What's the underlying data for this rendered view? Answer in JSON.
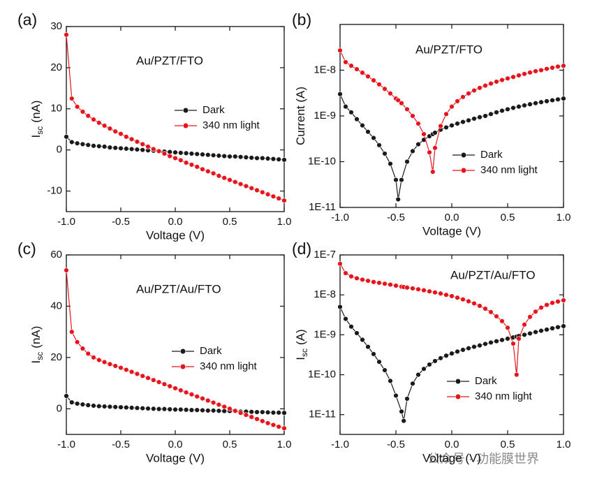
{
  "chart_data": [
    {
      "type": "line",
      "panel": "(a)",
      "annotation": "Au/PZT/FTO",
      "xlabel": "Voltage (V)",
      "ylabel": [
        "I",
        "sc",
        "(nA)"
      ],
      "xlim": [
        -1,
        1
      ],
      "xticks": [
        {
          "value": -1,
          "label": "-1.0"
        },
        {
          "value": -0.5,
          "label": "-0.5"
        },
        {
          "value": 0,
          "label": "0.0"
        },
        {
          "value": 0.5,
          "label": "0.5"
        },
        {
          "value": 1,
          "label": "1.0"
        }
      ],
      "ylim": [
        -15,
        30
      ],
      "yticks": [
        -10,
        0,
        10,
        20,
        30
      ],
      "grid": false,
      "x": [
        -1,
        -0.95,
        -0.9,
        -0.85,
        -0.8,
        -0.75,
        -0.7,
        -0.65,
        -0.6,
        -0.55,
        -0.5,
        -0.45,
        -0.4,
        -0.35,
        -0.3,
        -0.25,
        -0.2,
        -0.15,
        -0.1,
        -0.05,
        0,
        0.05,
        0.1,
        0.15,
        0.2,
        0.25,
        0.3,
        0.35,
        0.4,
        0.45,
        0.5,
        0.55,
        0.6,
        0.65,
        0.7,
        0.75,
        0.8,
        0.85,
        0.9,
        0.95,
        1
      ],
      "series": [
        {
          "name": "Dark",
          "color": "#1a1a1a",
          "values": [
            3.2,
            1.9,
            1.6,
            1.4,
            1.2,
            1.0,
            0.9,
            0.8,
            0.6,
            0.5,
            0.4,
            0.3,
            0.2,
            0.1,
            0.0,
            -0.1,
            -0.2,
            -0.3,
            -0.4,
            -0.5,
            -0.6,
            -0.7,
            -0.8,
            -0.9,
            -1.0,
            -1.1,
            -1.2,
            -1.3,
            -1.4,
            -1.5,
            -1.6,
            -1.6,
            -1.7,
            -1.8,
            -1.9,
            -2.0,
            -2.0,
            -2.1,
            -2.2,
            -2.3,
            -2.4
          ]
        },
        {
          "name": "340 nm light",
          "color": "#e8141c",
          "values": [
            28,
            12.5,
            10.5,
            9.3,
            8.3,
            7.4,
            6.6,
            5.9,
            5.2,
            4.5,
            3.9,
            3.2,
            2.6,
            2.0,
            1.4,
            0.8,
            0.2,
            -0.3,
            -0.9,
            -1.5,
            -2.0,
            -2.5,
            -3.1,
            -3.6,
            -4.1,
            -4.7,
            -5.2,
            -5.7,
            -6.3,
            -6.8,
            -7.3,
            -7.8,
            -8.3,
            -8.8,
            -9.3,
            -9.8,
            -10.3,
            -10.8,
            -11.3,
            -11.8,
            -12.3
          ]
        }
      ]
    },
    {
      "type": "line",
      "panel": "(b)",
      "annotation": "Au/PZT/FTO",
      "xlabel": "Voltage (V)",
      "ylabel": [
        "Current (A)"
      ],
      "yscale": "log",
      "xlim": [
        -1,
        1
      ],
      "xticks": [
        {
          "value": -1,
          "label": "-1.0"
        },
        {
          "value": -0.5,
          "label": "-0.5"
        },
        {
          "value": 0,
          "label": "0.0"
        },
        {
          "value": 0.5,
          "label": "0.5"
        },
        {
          "value": 1,
          "label": "1.0"
        }
      ],
      "ylim": [
        1e-11,
        1e-07
      ],
      "yticks": [
        {
          "value": 1e-11,
          "label": "1E-11"
        },
        {
          "value": 1e-10,
          "label": "1E-10"
        },
        {
          "value": 1e-09,
          "label": "1E-9"
        },
        {
          "value": 1e-08,
          "label": "1E-8"
        }
      ],
      "grid": false,
      "x": [
        -1,
        -0.95,
        -0.9,
        -0.85,
        -0.8,
        -0.75,
        -0.7,
        -0.65,
        -0.6,
        -0.55,
        -0.5,
        -0.48,
        -0.45,
        -0.4,
        -0.35,
        -0.3,
        -0.25,
        -0.2,
        -0.17,
        -0.15,
        -0.1,
        -0.05,
        0,
        0.05,
        0.1,
        0.15,
        0.2,
        0.25,
        0.3,
        0.35,
        0.4,
        0.45,
        0.5,
        0.55,
        0.6,
        0.65,
        0.7,
        0.75,
        0.8,
        0.85,
        0.9,
        0.95,
        1
      ],
      "series": [
        {
          "name": "Dark",
          "color": "#1a1a1a",
          "values": [
            3e-09,
            1.6e-09,
            1.2e-09,
            8.5e-10,
            6.2e-10,
            4.5e-10,
            3.3e-10,
            2.3e-10,
            1.5e-10,
            9e-11,
            4e-11,
            1.5e-11,
            4e-11,
            1e-10,
            1.7e-10,
            2.4e-10,
            3e-10,
            3.6e-10,
            4e-10,
            4.3e-10,
            5e-10,
            5.6e-10,
            6.2e-10,
            6.8e-10,
            7.4e-10,
            8e-10,
            8.7e-10,
            9.4e-10,
            1e-09,
            1.1e-09,
            1.2e-09,
            1.3e-09,
            1.4e-09,
            1.5e-09,
            1.6e-09,
            1.7e-09,
            1.8e-09,
            1.9e-09,
            2e-09,
            2.1e-09,
            2.2e-09,
            2.3e-09,
            2.4e-09
          ]
        },
        {
          "name": "340 nm light",
          "color": "#e8141c",
          "values": [
            2.7e-08,
            1.5e-08,
            1.25e-08,
            1.05e-08,
            8.8e-09,
            7.3e-09,
            6e-09,
            4.9e-09,
            3.9e-09,
            3.1e-09,
            2.4e-09,
            2.2e-09,
            1.9e-09,
            1.4e-09,
            1e-09,
            6.8e-10,
            4e-10,
            1.6e-10,
            6e-11,
            2e-10,
            6e-10,
            1.1e-09,
            1.6e-09,
            2.1e-09,
            2.6e-09,
            3.1e-09,
            3.6e-09,
            4.1e-09,
            4.6e-09,
            5.1e-09,
            5.6e-09,
            6.1e-09,
            6.6e-09,
            7.1e-09,
            7.7e-09,
            8.3e-09,
            8.9e-09,
            9.5e-09,
            1e-08,
            1.07e-08,
            1.13e-08,
            1.2e-08,
            1.25e-08
          ]
        }
      ]
    },
    {
      "type": "line",
      "panel": "(c)",
      "annotation": "Au/PZT/Au/FTO",
      "xlabel": "Voltage (V)",
      "ylabel": [
        "I",
        "sc",
        "(nA)"
      ],
      "xlim": [
        -1,
        1
      ],
      "xticks": [
        {
          "value": -1,
          "label": "-1.0"
        },
        {
          "value": -0.5,
          "label": "-0.5"
        },
        {
          "value": 0,
          "label": "0.0"
        },
        {
          "value": 0.5,
          "label": "0.5"
        },
        {
          "value": 1,
          "label": "1.0"
        }
      ],
      "ylim": [
        -10,
        60
      ],
      "yticks": [
        0,
        20,
        40,
        60
      ],
      "grid": false,
      "x": [
        -1,
        -0.95,
        -0.9,
        -0.85,
        -0.8,
        -0.75,
        -0.7,
        -0.65,
        -0.6,
        -0.55,
        -0.5,
        -0.45,
        -0.4,
        -0.35,
        -0.3,
        -0.25,
        -0.2,
        -0.15,
        -0.1,
        -0.05,
        0,
        0.05,
        0.1,
        0.15,
        0.2,
        0.25,
        0.3,
        0.35,
        0.4,
        0.45,
        0.5,
        0.55,
        0.6,
        0.65,
        0.7,
        0.75,
        0.8,
        0.85,
        0.9,
        0.95,
        1
      ],
      "series": [
        {
          "name": "Dark",
          "color": "#1a1a1a",
          "values": [
            5,
            2.5,
            2,
            1.7,
            1.4,
            1.2,
            1.0,
            0.9,
            0.8,
            0.7,
            0.6,
            0.5,
            0.4,
            0.3,
            0.2,
            0.1,
            0.0,
            -0.1,
            -0.1,
            -0.2,
            -0.3,
            -0.3,
            -0.4,
            -0.5,
            -0.5,
            -0.6,
            -0.7,
            -0.7,
            -0.8,
            -0.9,
            -0.9,
            -1.0,
            -1.1,
            -1.1,
            -1.2,
            -1.3,
            -1.3,
            -1.4,
            -1.5,
            -1.5,
            -1.6
          ]
        },
        {
          "name": "340 nm light",
          "color": "#e8141c",
          "values": [
            54,
            30,
            26,
            23.5,
            21.5,
            20,
            19,
            18.2,
            17.4,
            16.7,
            16,
            15.2,
            14.4,
            13.6,
            12.8,
            12,
            11.2,
            10.4,
            9.6,
            8.8,
            8,
            7.2,
            6.4,
            5.6,
            4.8,
            4.0,
            3.2,
            2.4,
            1.6,
            0.8,
            0.0,
            -0.8,
            -1.6,
            -2.4,
            -3.2,
            -4.0,
            -4.8,
            -5.6,
            -6.3,
            -7.0,
            -7.6
          ]
        }
      ]
    },
    {
      "type": "line",
      "panel": "(d)",
      "annotation": "Au/PZT/Au/FTO",
      "xlabel": "Voltage (V)",
      "ylabel": [
        "I",
        "sc",
        "(A)"
      ],
      "yscale": "log",
      "xlim": [
        -1,
        1
      ],
      "xticks": [
        {
          "value": -1,
          "label": "-1.0"
        },
        {
          "value": -0.5,
          "label": "-0.5"
        },
        {
          "value": 0,
          "label": "0.0"
        },
        {
          "value": 0.5,
          "label": "0.5"
        },
        {
          "value": 1,
          "label": "1.0"
        }
      ],
      "ylim": [
        3.2e-12,
        1e-07
      ],
      "yticks": [
        {
          "value": 1e-11,
          "label": "1E-11"
        },
        {
          "value": 1e-10,
          "label": "1E-10"
        },
        {
          "value": 1e-09,
          "label": "1E-9"
        },
        {
          "value": 1e-08,
          "label": "1E-8"
        },
        {
          "value": 1e-07,
          "label": "1E-7"
        }
      ],
      "grid": false,
      "x": [
        -1,
        -0.95,
        -0.9,
        -0.85,
        -0.8,
        -0.75,
        -0.7,
        -0.65,
        -0.6,
        -0.55,
        -0.5,
        -0.45,
        -0.43,
        -0.4,
        -0.35,
        -0.3,
        -0.25,
        -0.2,
        -0.15,
        -0.1,
        -0.05,
        0,
        0.05,
        0.1,
        0.15,
        0.2,
        0.25,
        0.3,
        0.35,
        0.4,
        0.45,
        0.5,
        0.55,
        0.58,
        0.6,
        0.65,
        0.7,
        0.75,
        0.8,
        0.85,
        0.9,
        0.95,
        1
      ],
      "series": [
        {
          "name": "Dark",
          "color": "#1a1a1a",
          "values": [
            5e-09,
            2.5e-09,
            1.6e-09,
            1.1e-09,
            7.5e-10,
            5e-10,
            3.3e-10,
            2.1e-10,
            1.3e-10,
            7e-11,
            3e-11,
            1.2e-11,
            7e-12,
            2.5e-11,
            6e-11,
            1e-10,
            1.4e-10,
            1.8e-10,
            2.2e-10,
            2.6e-10,
            3e-10,
            3.4e-10,
            3.8e-10,
            4.2e-10,
            4.6e-10,
            5e-10,
            5.4e-10,
            5.9e-10,
            6.4e-10,
            6.9e-10,
            7.4e-10,
            8e-10,
            8.6e-10,
            9e-10,
            9.3e-10,
            1e-09,
            1.08e-09,
            1.17e-09,
            1.26e-09,
            1.35e-09,
            1.45e-09,
            1.55e-09,
            1.65e-09
          ]
        },
        {
          "name": "340 nm light",
          "color": "#e8141c",
          "values": [
            6e-08,
            3.5e-08,
            2.9e-08,
            2.6e-08,
            2.4e-08,
            2.25e-08,
            2.1e-08,
            2e-08,
            1.9e-08,
            1.8e-08,
            1.7e-08,
            1.6e-08,
            1.57e-08,
            1.52e-08,
            1.45e-08,
            1.38e-08,
            1.3e-08,
            1.22e-08,
            1.15e-08,
            1.08e-08,
            1e-08,
            9.3e-09,
            8.5e-09,
            7.7e-09,
            6.9e-09,
            6.1e-09,
            5.3e-09,
            4.5e-09,
            3.7e-09,
            2.9e-09,
            2.2e-09,
            1.5e-09,
            6e-10,
            1e-10,
            8e-10,
            1.8e-09,
            2.8e-09,
            3.8e-09,
            4.8e-09,
            5.6e-09,
            6.3e-09,
            6.8e-09,
            7.3e-09
          ]
        }
      ]
    }
  ],
  "watermark": "公众号 · 功能膜世界"
}
